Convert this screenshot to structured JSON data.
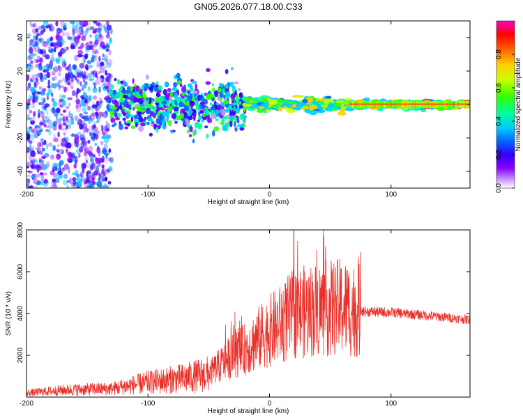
{
  "figure_title": "GN05.2026.077.18.00.C33",
  "colors": {
    "snr_line": "#e8312a",
    "colormap": [
      "#ffffff",
      "#cc99ff",
      "#8800ff",
      "#3300ff",
      "#0066ff",
      "#00ccff",
      "#00ff99",
      "#33ff00",
      "#ccff00",
      "#ffcc00",
      "#ff5500",
      "#ff0000",
      "#ff00cc"
    ]
  },
  "chart_data": [
    {
      "type": "heatmap",
      "xlabel": "Height of straight line (km)",
      "ylabel": "Frequency (Hz)",
      "xlim": [
        -200,
        165
      ],
      "ylim": [
        -50,
        50
      ],
      "x_ticks": [
        "-200",
        "-100",
        "0",
        "100"
      ],
      "y_ticks": [
        "40",
        "20",
        "0",
        "-20",
        "-40"
      ],
      "colorbar": {
        "label": "Normalized spectral amplitude",
        "range": [
          0,
          1
        ],
        "ticks": [
          "0.0",
          "0.2",
          "0.4",
          "0.6",
          "0.8"
        ]
      },
      "description_regions": [
        {
          "x_range": [
            -200,
            -130
          ],
          "spread_hz": 50,
          "amplitude": 0.25
        },
        {
          "x_range": [
            -130,
            -20
          ],
          "spread_hz": 12,
          "amplitude": 0.35
        },
        {
          "x_range": [
            -20,
            65
          ],
          "spread_hz": 3,
          "amplitude": 0.55
        },
        {
          "x_range": [
            65,
            165
          ],
          "spread_hz": 2,
          "amplitude": 0.6
        }
      ]
    },
    {
      "type": "line",
      "xlabel": "Height of straight line (km)",
      "ylabel": "SNR (10 * v/v)",
      "xlim": [
        -200,
        165
      ],
      "ylim": [
        0,
        8000
      ],
      "x_ticks": [
        "-200",
        "-100",
        "0",
        "100"
      ],
      "y_ticks": [
        "8000",
        "6000",
        "4000",
        "2000"
      ],
      "series": [
        {
          "name": "SNR",
          "envelope_points": [
            {
              "x": -200,
              "y": 200
            },
            {
              "x": -165,
              "y": 350
            },
            {
              "x": -130,
              "y": 400
            },
            {
              "x": -100,
              "y": 700
            },
            {
              "x": -70,
              "y": 900
            },
            {
              "x": -50,
              "y": 1100
            },
            {
              "x": -35,
              "y": 1800
            },
            {
              "x": -20,
              "y": 2300
            },
            {
              "x": -5,
              "y": 3000
            },
            {
              "x": 10,
              "y": 3500
            },
            {
              "x": 20,
              "y": 4000
            },
            {
              "x": 40,
              "y": 4200
            },
            {
              "x": 60,
              "y": 4300
            },
            {
              "x": 75,
              "y": 4100
            },
            {
              "x": 100,
              "y": 4050
            },
            {
              "x": 130,
              "y": 3900
            },
            {
              "x": 165,
              "y": 3700
            }
          ],
          "peak": {
            "x": 20,
            "y": 8000
          }
        }
      ]
    }
  ]
}
